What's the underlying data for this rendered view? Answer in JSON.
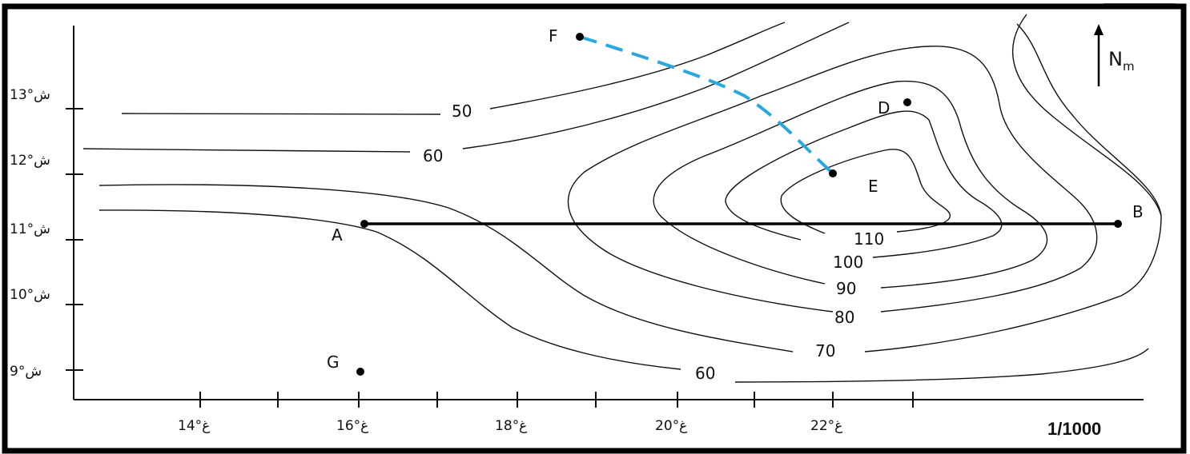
{
  "map": {
    "scale": "1/1000",
    "north_label_main": "N",
    "north_label_sub": "m",
    "y_axis_labels": [
      "13°ش",
      "12°ش",
      "11°ش",
      "10°ش",
      "9°ش"
    ],
    "x_axis_labels": [
      "14°غ",
      "16°غ",
      "18°غ",
      "20°غ",
      "22°غ"
    ],
    "contour_labels": [
      "50",
      "60",
      "60",
      "70",
      "80",
      "90",
      "100",
      "110"
    ],
    "points": [
      {
        "label": "A"
      },
      {
        "label": "B"
      },
      {
        "label": "D"
      },
      {
        "label": "E"
      },
      {
        "label": "F"
      },
      {
        "label": "G"
      }
    ],
    "colors": {
      "border": "#000000",
      "dashed_line": "#29a8e0",
      "contour": "#111111"
    }
  }
}
